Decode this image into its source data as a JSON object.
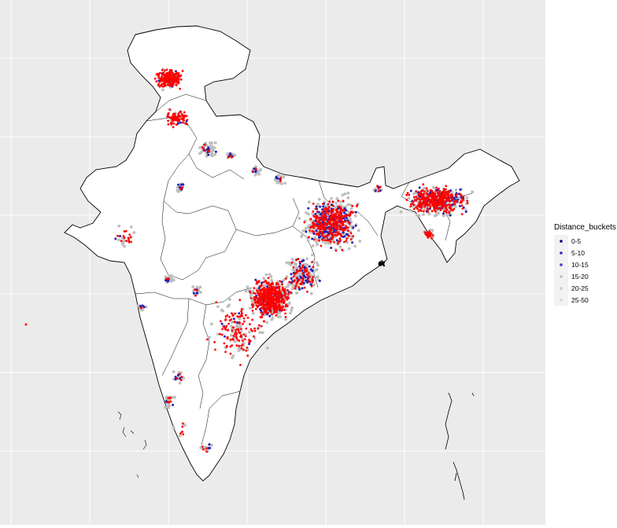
{
  "legend": {
    "title": "Distance_buckets",
    "items": [
      {
        "label": "0-5",
        "color": "#00008b"
      },
      {
        "label": "5-10",
        "color": "#2a2ab8"
      },
      {
        "label": "10-15",
        "color": "#3b3bd6"
      },
      {
        "label": "15-20",
        "color": "#bdbdbd"
      },
      {
        "label": "20-25",
        "color": "#c8c8c8"
      },
      {
        "label": "25-50",
        "color": "#d3d3d3"
      }
    ]
  },
  "colors": {
    "panel_background": "#ebebeb",
    "grid": "#ffffff",
    "land": "#ffffff",
    "border": "#000000",
    "points_far": "#ff0000",
    "points_near": "#1f1fb4",
    "points_mid": "#bebebe"
  }
}
